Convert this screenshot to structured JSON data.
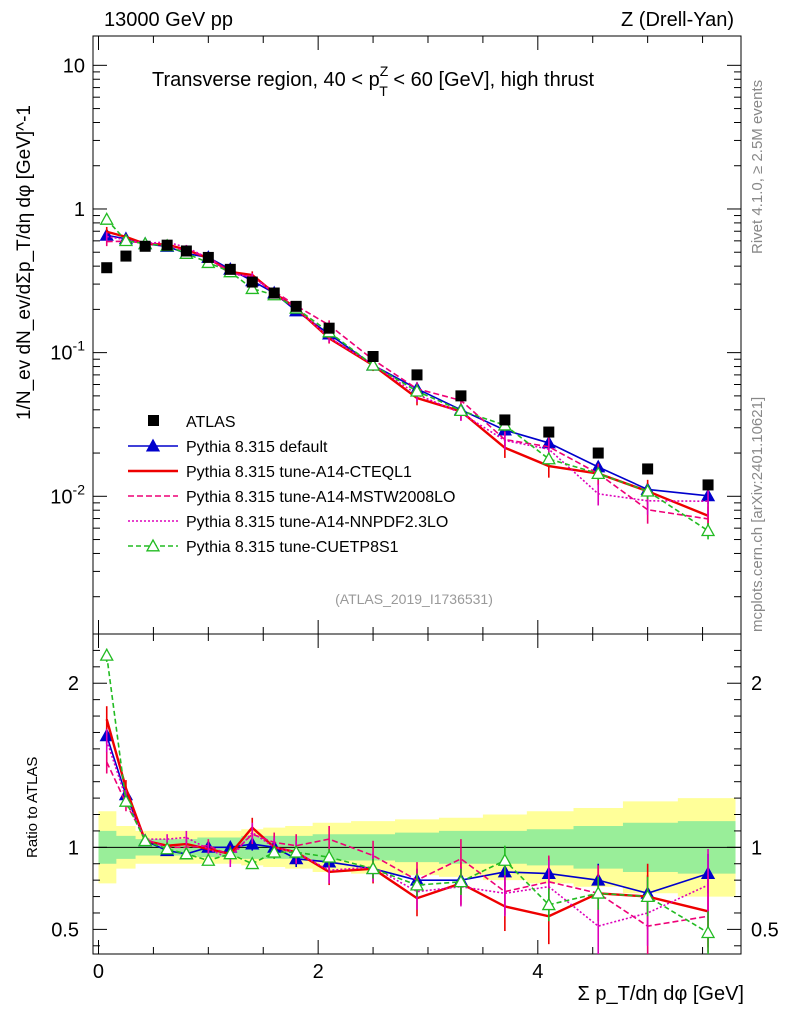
{
  "chart_data": {
    "type": "line",
    "header_left": "13000 GeV pp",
    "header_right": "Z (Drell-Yan)",
    "title_main": "Transverse region, 40 < p",
    "title_sup": "Z",
    "title_sub": "T",
    "title_tail": " < 60 [GeV], high thrust",
    "ylabel": "1/N_ev dN_ev/dΣp_T/dη dφ [GeV]^-1",
    "ratio_ylabel": "Ratio to ATLAS",
    "xlabel": "Σ p_T/dη dφ [GeV]",
    "side_text_top": "Rivet 4.1.0, ≥ 2.5M events",
    "side_text_bottom": "mcplots.cern.ch [arXiv:2401.10621]",
    "analysis_id": "(ATLAS_2019_I1736531)",
    "xlim": [
      -0.05,
      5.85
    ],
    "ylim": [
      0.0011,
      16
    ],
    "ratio_ylim": [
      0.35,
      2.3
    ],
    "x_ticks": [
      "0",
      "2",
      "4"
    ],
    "y_ticks": [
      "10^-2",
      "10^-1",
      "1",
      "10"
    ],
    "ratio_ticks": [
      "0.5",
      "1",
      "2"
    ],
    "x": [
      0.075,
      0.25,
      0.425,
      0.625,
      0.8,
      1.0,
      1.2,
      1.4,
      1.6,
      1.8,
      2.1,
      2.5,
      2.9,
      3.3,
      3.7,
      4.1,
      4.55,
      5.0,
      5.55
    ],
    "atlas": {
      "name": "ATLAS",
      "color": "#000000",
      "values": [
        0.39,
        0.47,
        0.55,
        0.56,
        0.51,
        0.46,
        0.38,
        0.31,
        0.26,
        0.21,
        0.148,
        0.094,
        0.07,
        0.05,
        0.034,
        0.028,
        0.02,
        0.0155,
        0.012
      ]
    },
    "ratio_band_inner": [
      0.1,
      0.07,
      0.05,
      0.05,
      0.05,
      0.06,
      0.06,
      0.07,
      0.07,
      0.07,
      0.08,
      0.08,
      0.09,
      0.1,
      0.1,
      0.11,
      0.13,
      0.15,
      0.16
    ],
    "ratio_band_outer": [
      0.22,
      0.13,
      0.1,
      0.1,
      0.1,
      0.1,
      0.1,
      0.11,
      0.12,
      0.13,
      0.15,
      0.16,
      0.17,
      0.18,
      0.2,
      0.22,
      0.24,
      0.28,
      0.3
    ],
    "series": [
      {
        "name": "Pythia 8.315 default",
        "color": "#0000cc",
        "dash": "none",
        "marker": "triangle",
        "ratios": [
          1.68,
          1.32,
          1.04,
          0.98,
          0.96,
          1.0,
          1.0,
          1.02,
          1.0,
          0.93,
          0.91,
          0.87,
          0.8,
          0.8,
          0.85,
          0.84,
          0.8,
          0.72,
          0.84
        ],
        "errors": [
          0.05,
          0.04,
          0.02,
          0.02,
          0.02,
          0.03,
          0.03,
          0.04,
          0.05,
          0.05,
          0.05,
          0.06,
          0.07,
          0.08,
          0.09,
          0.1,
          0.1,
          0.11,
          0.12
        ]
      },
      {
        "name": "Pythia 8.315 tune-A14-CTEQL1",
        "color": "#ee0000",
        "dash": "none",
        "marker": "none",
        "ratios": [
          1.78,
          1.36,
          1.04,
          1.01,
          1.02,
          0.99,
          0.96,
          1.12,
          1.0,
          0.97,
          0.85,
          0.87,
          0.69,
          0.78,
          0.64,
          0.58,
          0.72,
          0.7,
          0.61
        ],
        "errors": [
          0.08,
          0.05,
          0.03,
          0.03,
          0.04,
          0.04,
          0.05,
          0.06,
          0.07,
          0.07,
          0.08,
          0.09,
          0.11,
          0.13,
          0.15,
          0.17,
          0.17,
          0.2,
          0.22
        ]
      },
      {
        "name": "Pythia 8.315 tune-A14-MSTW2008LO",
        "color": "#ee0077",
        "dash": "6,3",
        "marker": "none",
        "ratios": [
          1.52,
          1.27,
          1.05,
          1.0,
          1.0,
          1.01,
          0.95,
          1.08,
          1.03,
          1.01,
          1.05,
          0.95,
          0.8,
          0.93,
          0.73,
          0.79,
          0.72,
          0.52,
          0.58
        ],
        "errors": [
          0.07,
          0.05,
          0.03,
          0.03,
          0.04,
          0.04,
          0.05,
          0.06,
          0.06,
          0.07,
          0.08,
          0.09,
          0.11,
          0.12,
          0.14,
          0.16,
          0.17,
          0.2,
          0.22
        ]
      },
      {
        "name": "Pythia 8.315 tune-A14-NNPDF2.3LO",
        "color": "#dd00bb",
        "dash": "2,2",
        "marker": "none",
        "ratios": [
          1.65,
          1.3,
          1.05,
          1.05,
          1.06,
          0.99,
          0.93,
          1.09,
          1.0,
          0.97,
          0.86,
          0.88,
          0.73,
          0.76,
          0.72,
          0.76,
          0.52,
          0.6,
          0.77
        ],
        "errors": [
          0.07,
          0.05,
          0.03,
          0.03,
          0.04,
          0.04,
          0.05,
          0.06,
          0.06,
          0.07,
          0.08,
          0.09,
          0.11,
          0.12,
          0.14,
          0.16,
          0.17,
          0.2,
          0.22
        ]
      },
      {
        "name": "Pythia 8.315 tune-CUETP8S1",
        "color": "#22bb22",
        "dash": "5,3",
        "marker": "open-triangle",
        "ratios": [
          2.17,
          1.28,
          1.04,
          0.99,
          0.96,
          0.92,
          0.96,
          0.9,
          0.97,
          0.97,
          0.94,
          0.87,
          0.77,
          0.79,
          0.92,
          0.65,
          0.72,
          0.7,
          0.48
        ],
        "errors": [
          0.04,
          0.03,
          0.02,
          0.02,
          0.02,
          0.03,
          0.03,
          0.03,
          0.04,
          0.04,
          0.05,
          0.06,
          0.07,
          0.08,
          0.09,
          0.1,
          0.1,
          0.12,
          0.13
        ]
      }
    ]
  }
}
